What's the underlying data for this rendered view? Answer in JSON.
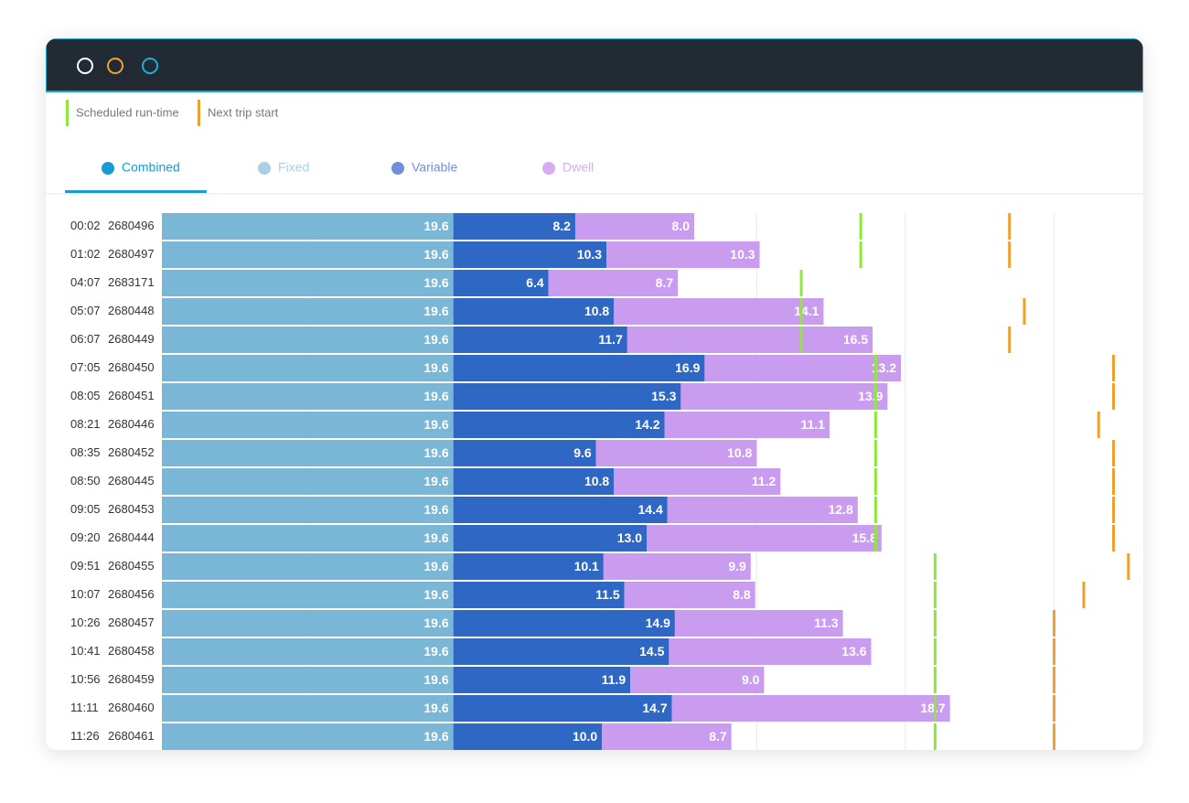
{
  "chart_data": {
    "type": "stacked-bar",
    "orientation": "horizontal",
    "tabs": [
      {
        "name": "Combined",
        "color": "#1a9ad6"
      },
      {
        "name": "Fixed",
        "color": "#a9cfe2"
      },
      {
        "name": "Variable",
        "color": "#6f8fd6"
      },
      {
        "name": "Dwell",
        "color": "#d6acf2"
      }
    ],
    "categories": [
      "00:02",
      "01:02",
      "04:07",
      "05:07",
      "06:07",
      "07:05",
      "08:05",
      "08:21",
      "08:35",
      "08:50",
      "09:05",
      "09:20",
      "09:51",
      "10:07",
      "10:26",
      "10:41",
      "10:56",
      "11:11",
      "11:26"
    ],
    "trip_ids": [
      "2680496",
      "2680497",
      "2683171",
      "2680448",
      "2680449",
      "2680450",
      "2680451",
      "2680446",
      "2680452",
      "2680445",
      "2680453",
      "2680444",
      "2680455",
      "2680456",
      "2680457",
      "2680458",
      "2680459",
      "2680460",
      "2680461"
    ],
    "series": [
      {
        "name": "Fixed",
        "color": "#7ab6d6",
        "values": [
          19.6,
          19.6,
          19.6,
          19.6,
          19.6,
          19.6,
          19.6,
          19.6,
          19.6,
          19.6,
          19.6,
          19.6,
          19.6,
          19.6,
          19.6,
          19.6,
          19.6,
          19.6,
          19.6
        ],
        "value_labels": [
          "19.6",
          "19.6",
          "19.6",
          "19.6",
          "19.6",
          "19.6",
          "19.6",
          "19.6",
          "19.6",
          "19.6",
          "19.6",
          "19.6",
          "19.6",
          "19.6",
          "19.6",
          "19.6",
          "19.6",
          "19.6",
          "19.6"
        ]
      },
      {
        "name": "Variable",
        "color": "#2f67c4",
        "values": [
          8.2,
          10.3,
          6.4,
          10.8,
          11.7,
          16.9,
          15.3,
          14.2,
          9.6,
          10.8,
          14.4,
          13.0,
          10.1,
          11.5,
          14.9,
          14.5,
          11.9,
          14.7,
          10.0
        ],
        "value_labels": [
          "8.2",
          "10.3",
          "6.4",
          "10.8",
          "11.7",
          "16.9",
          "15.3",
          "14.2",
          "9.6",
          "10.8",
          "14.4",
          "13.0",
          "10.1",
          "11.5",
          "14.9",
          "14.5",
          "11.9",
          "14.7",
          "10.0"
        ]
      },
      {
        "name": "Dwell",
        "color": "#c99cf0",
        "values": [
          8.0,
          10.3,
          8.7,
          14.1,
          16.5,
          13.2,
          13.9,
          11.1,
          10.8,
          11.2,
          12.8,
          15.8,
          9.9,
          8.8,
          11.3,
          13.6,
          9.0,
          18.7,
          8.7
        ],
        "value_labels": [
          "8.0",
          "10.3",
          "8.7",
          "14.1",
          "16.5",
          "13.2",
          "13.9",
          "11.1",
          "10.8",
          "11.2",
          "12.8",
          "15.8",
          "9.9",
          "8.8",
          "11.3",
          "13.6",
          "9.0",
          "18.7",
          "8.7"
        ]
      }
    ],
    "markers": [
      {
        "name": "Scheduled run-time",
        "color": "#8ee83a",
        "values": [
          47,
          47,
          43,
          43,
          43,
          48,
          48,
          48,
          48,
          48,
          48,
          48,
          52,
          52,
          52,
          52,
          52,
          52,
          52
        ]
      },
      {
        "name": "Next trip start",
        "color": "#f0a030",
        "values": [
          57,
          57,
          null,
          58,
          57,
          64,
          64,
          63,
          64,
          64,
          64,
          64,
          65,
          62,
          60,
          60,
          60,
          60,
          60
        ]
      }
    ],
    "xlim": [
      0,
      66
    ],
    "xticks": [
      10,
      20,
      30,
      40,
      50,
      60
    ],
    "grid": true
  }
}
